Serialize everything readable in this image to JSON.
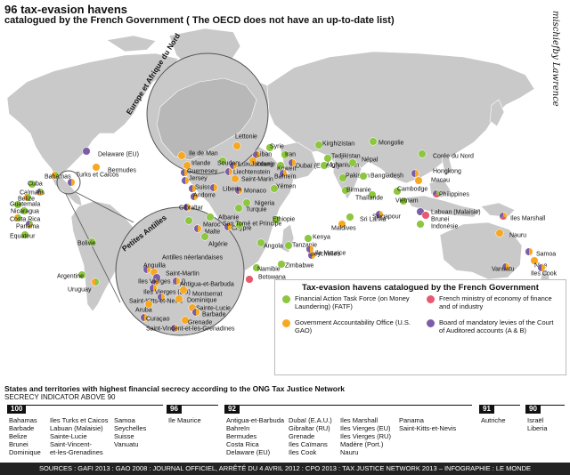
{
  "title": "96 tax-evasion havens",
  "subtitle": "catalogued by the French Government ( The OECD does not have an up-to-date list)",
  "credit": "mischiefby Lawrence",
  "colors": {
    "land": "#c9c9c9",
    "sea": "#ffffff",
    "fatf": "#8dc63f",
    "gao": "#f7a823",
    "ministry": "#e8596f",
    "court": "#7b5ea7"
  },
  "insets": {
    "europe": "Europe et Afrique du Nord",
    "antilles": "Petites Antilles"
  },
  "places": [
    {
      "name": "Delaware (EU)",
      "cats": [
        "court"
      ]
    },
    {
      "name": "Bermudes",
      "cats": [
        "gao"
      ]
    },
    {
      "name": "Bahamas",
      "cats": [
        "fatf",
        "gao"
      ]
    },
    {
      "name": "Cuba",
      "cats": [
        "fatf"
      ]
    },
    {
      "name": "Caïmans",
      "cats": [
        "fatf",
        "gao",
        "court"
      ]
    },
    {
      "name": "Belize",
      "cats": [
        "fatf",
        "gao"
      ]
    },
    {
      "name": "Guatemala",
      "cats": [
        "fatf"
      ]
    },
    {
      "name": "Nicaragua",
      "cats": [
        "fatf"
      ]
    },
    {
      "name": "Costa Rica",
      "cats": [
        "fatf",
        "gao"
      ]
    },
    {
      "name": "Panama",
      "cats": [
        "fatf",
        "gao",
        "court"
      ]
    },
    {
      "name": "Equateur",
      "cats": [
        "fatf"
      ]
    },
    {
      "name": "Turks et Caicos",
      "cats": [
        "gao",
        "court"
      ]
    },
    {
      "name": "Bolivie",
      "cats": [
        "fatf"
      ]
    },
    {
      "name": "Argentine",
      "cats": [
        "fatf"
      ]
    },
    {
      "name": "Uruguay",
      "cats": [
        "fatf",
        "gao"
      ]
    },
    {
      "name": "Lettonie",
      "cats": [
        "gao"
      ]
    },
    {
      "name": "Ile de Man",
      "cats": [
        "gao"
      ]
    },
    {
      "name": "Irlande",
      "cats": [
        "gao"
      ]
    },
    {
      "name": "Guernesey",
      "cats": [
        "gao",
        "court"
      ]
    },
    {
      "name": "Jersey",
      "cats": [
        "gao",
        "court"
      ]
    },
    {
      "name": "Luxembourg",
      "cats": [
        "gao",
        "court"
      ]
    },
    {
      "name": "Liechtenstein",
      "cats": [
        "gao",
        "court"
      ]
    },
    {
      "name": "Saint-Marin",
      "cats": [
        "gao"
      ]
    },
    {
      "name": "Suisse",
      "cats": [
        "gao",
        "court"
      ]
    },
    {
      "name": "Andorre",
      "cats": [
        "gao",
        "court"
      ]
    },
    {
      "name": "Monaco",
      "cats": [
        "gao",
        "court"
      ]
    },
    {
      "name": "Turquie",
      "cats": [
        "fatf"
      ]
    },
    {
      "name": "Gibraltar",
      "cats": [
        "gao",
        "court"
      ]
    },
    {
      "name": "Albanie",
      "cats": [
        "fatf"
      ]
    },
    {
      "name": "Maroc",
      "cats": [
        "fatf"
      ]
    },
    {
      "name": "Malte",
      "cats": [
        "gao",
        "court"
      ]
    },
    {
      "name": "Chypre",
      "cats": [
        "gao",
        "court"
      ]
    },
    {
      "name": "Algérie",
      "cats": [
        "fatf"
      ]
    },
    {
      "name": "Syrie",
      "cats": [
        "fatf"
      ]
    },
    {
      "name": "Liban",
      "cats": [
        "gao",
        "court"
      ]
    },
    {
      "name": "Jordanie",
      "cats": [
        "gao"
      ]
    },
    {
      "name": "Iran",
      "cats": [
        "fatf"
      ]
    },
    {
      "name": "Koweït",
      "cats": [
        "fatf"
      ]
    },
    {
      "name": "Bahreïn",
      "cats": [
        "gao",
        "court"
      ]
    },
    {
      "name": "Dubaï (E. A. U.)",
      "cats": [
        "gao",
        "court"
      ]
    },
    {
      "name": "Yémen",
      "cats": [
        "fatf"
      ]
    },
    {
      "name": "Kirghizistan",
      "cats": [
        "fatf"
      ]
    },
    {
      "name": "Mongolie",
      "cats": [
        "fatf"
      ]
    },
    {
      "name": "Tadjikistan",
      "cats": [
        "fatf"
      ]
    },
    {
      "name": "Afghanistan",
      "cats": [
        "fatf"
      ]
    },
    {
      "name": "Pakistan",
      "cats": [
        "fatf"
      ]
    },
    {
      "name": "Népal",
      "cats": [
        "fatf"
      ]
    },
    {
      "name": "Bangladesh",
      "cats": [
        "fatf"
      ]
    },
    {
      "name": "Birmanie",
      "cats": [
        "fatf"
      ]
    },
    {
      "name": "Thaïlande",
      "cats": [
        "fatf"
      ]
    },
    {
      "name": "Corée du Nord",
      "cats": [
        "fatf"
      ]
    },
    {
      "name": "Hongkong",
      "cats": [
        "gao",
        "court"
      ]
    },
    {
      "name": "Macau",
      "cats": [
        "gao"
      ]
    },
    {
      "name": "Cambodge",
      "cats": [
        "fatf"
      ]
    },
    {
      "name": "Philippines",
      "cats": [
        "fatf",
        "ministry",
        "court"
      ]
    },
    {
      "name": "Vietnam",
      "cats": [
        "fatf"
      ]
    },
    {
      "name": "Labuan (Malaisie)",
      "cats": [
        "court"
      ]
    },
    {
      "name": "Brunei",
      "cats": [
        "ministry"
      ]
    },
    {
      "name": "Indonésie",
      "cats": [
        "fatf"
      ]
    },
    {
      "name": "Singapour",
      "cats": [
        "gao",
        "court"
      ]
    },
    {
      "name": "Sri Lanka",
      "cats": [
        "fatf"
      ]
    },
    {
      "name": "Maldives",
      "cats": [
        "gao"
      ]
    },
    {
      "name": "Soudan",
      "cats": [
        "fatf"
      ]
    },
    {
      "name": "Liberia",
      "cats": [
        "gao",
        "court"
      ]
    },
    {
      "name": "Nigeria",
      "cats": [
        "fatf"
      ]
    },
    {
      "name": "Ethiopie",
      "cats": [
        "fatf"
      ]
    },
    {
      "name": "Sao Tomé et Principe",
      "cats": [
        "fatf"
      ]
    },
    {
      "name": "Kenya",
      "cats": [
        "fatf"
      ]
    },
    {
      "name": "Seychelles",
      "cats": [
        "gao",
        "court"
      ]
    },
    {
      "name": "Tanzanie",
      "cats": [
        "fatf"
      ]
    },
    {
      "name": "Angola",
      "cats": [
        "fatf"
      ]
    },
    {
      "name": "Namibie",
      "cats": [
        "fatf"
      ]
    },
    {
      "name": "Zimbabwe",
      "cats": [
        "fatf"
      ]
    },
    {
      "name": "Botswana",
      "cats": [
        "ministry"
      ]
    },
    {
      "name": "Ile Maurice",
      "cats": [
        "gao",
        "court"
      ]
    },
    {
      "name": "Iles Marshall",
      "cats": [
        "gao",
        "ministry",
        "court"
      ]
    },
    {
      "name": "Nauru",
      "cats": [
        "gao"
      ]
    },
    {
      "name": "Vanuatu",
      "cats": [
        "gao",
        "court"
      ]
    },
    {
      "name": "Samoa",
      "cats": [
        "gao",
        "court"
      ]
    },
    {
      "name": "Niue",
      "cats": [
        "gao"
      ]
    },
    {
      "name": "Iles Cook",
      "cats": [
        "gao",
        "court"
      ]
    },
    {
      "name": "Anguilla",
      "cats": [
        "gao",
        "court"
      ]
    },
    {
      "name": "Antilles néerlandaises",
      "cats": [
        "gao"
      ]
    },
    {
      "name": "Saint-Martin",
      "cats": [
        "court"
      ]
    },
    {
      "name": "Iles Vierges (RU)",
      "cats": [
        "gao",
        "court"
      ]
    },
    {
      "name": "Iles Vierges (EU)",
      "cats": [
        "gao",
        "court"
      ]
    },
    {
      "name": "Antigua-et-Barbuda",
      "cats": [
        "gao",
        "court"
      ]
    },
    {
      "name": "Montserrat",
      "cats": [
        "gao"
      ]
    },
    {
      "name": "Saint-Kitts-et-Nevis",
      "cats": [
        "gao",
        "court"
      ]
    },
    {
      "name": "Aruba",
      "cats": [
        "gao"
      ]
    },
    {
      "name": "Dominique",
      "cats": [
        "gao"
      ]
    },
    {
      "name": "Sainte-Lucie",
      "cats": [
        "gao"
      ]
    },
    {
      "name": "Barbade",
      "cats": [
        "gao",
        "court"
      ]
    },
    {
      "name": "Grenade",
      "cats": [
        "gao"
      ]
    },
    {
      "name": "Curaçao",
      "cats": [
        "gao",
        "court"
      ]
    },
    {
      "name": "Saint-Vincent-et-les-Grenadines",
      "cats": [
        "gao",
        "court"
      ]
    }
  ],
  "legend": {
    "title": "Tax-evasion havens catalogued by the French Government",
    "items": [
      {
        "key": "fatf",
        "label": "Financial Action Task Force (on Money Laundering) (FATF)"
      },
      {
        "key": "gao",
        "label": "Government Accountability Office (U.S. GAO)"
      },
      {
        "key": "ministry",
        "label": "French ministry of economy of finance and of industry"
      },
      {
        "key": "court",
        "label": "Board of mandatory levies of the Court of Auditored accounts (A & B)"
      }
    ]
  },
  "secrecy": {
    "title": "States and territories with highest financial secrecy according to the ONG Tax Justice Network",
    "subtitle": "SECRECY INDICATOR ABOVE 90",
    "groups": [
      {
        "score": "100",
        "columns": [
          [
            "Bahamas",
            "Barbade",
            "Belize",
            "Brunei",
            "Dominique"
          ],
          [
            "Iles Turks et Caicos",
            "Labuan (Malaisie)",
            "Sainte-Lucie",
            "Saint-Vincent-",
            "et-les-Grenadines"
          ],
          [
            "Samoa",
            "Seychelles",
            "Suisse",
            "Vanuatu"
          ]
        ]
      },
      {
        "score": "96",
        "columns": [
          [
            "Ile Maurice"
          ]
        ]
      },
      {
        "score": "92",
        "columns": [
          [
            "Antigua-et-Barbuda",
            "Bahreïn",
            "Bermudes",
            "Costa Rica",
            "Delaware (EU)"
          ],
          [
            "Dubaï (E.A.U.)",
            "Gibraltar (RU)",
            "Grenade",
            "Iles Caïmans",
            "Iles Cook"
          ],
          [
            "Iles Marshall",
            "Iles Vierges (EU)",
            "Iles Vierges (RU)",
            "Madère (Port.)",
            "Nauru"
          ],
          [
            "Panama",
            "Saint-Kitts-et-Nevis"
          ]
        ]
      },
      {
        "score": "91",
        "columns": [
          [
            "Autriche"
          ]
        ]
      },
      {
        "score": "90",
        "columns": [
          [
            "Israël",
            "Liberia"
          ]
        ]
      }
    ]
  },
  "sources": "SOURCES : GAFI 2013 : GAO 2008 : JOURNAL OFFICIEL, ARRÊTÉ DU 4 AVRIL 2012 : CPO 2013 : TAX JUSTICE NETWORK 2013 – INFOGRAPHIE : LE MONDE"
}
